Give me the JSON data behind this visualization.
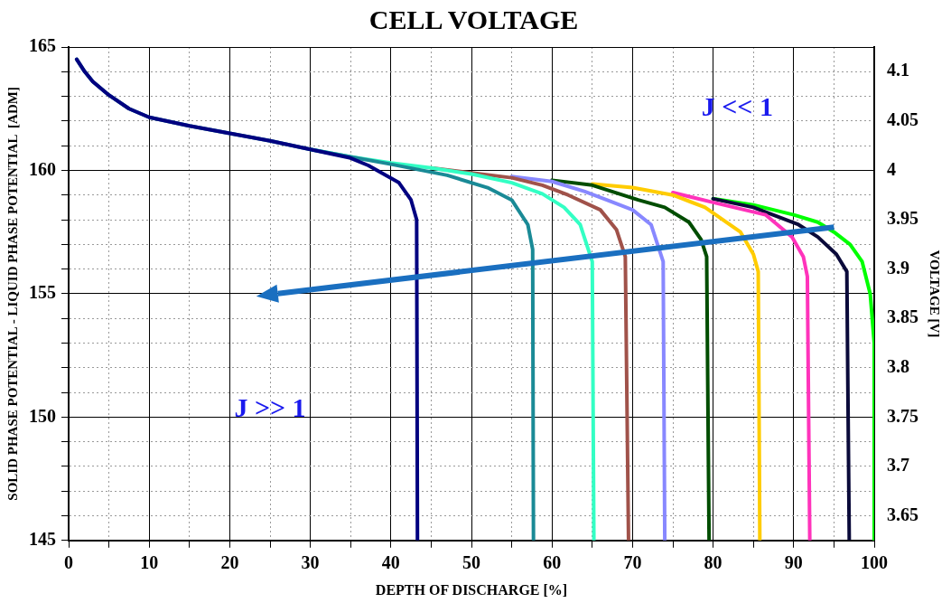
{
  "chart_data": {
    "type": "line",
    "title": "CELL VOLTAGE",
    "xlabel": "DEPTH OF DISCHARGE [%]",
    "ylabel": "SOLID PHASE POTENTIAL - LIQUID PHASE POTENTIAL  [ADM]",
    "y2label": "VOLTAGE [V]",
    "annotations": [
      "J << 1",
      "J >> 1"
    ],
    "xlim": [
      0,
      100
    ],
    "ylim": [
      145,
      165
    ],
    "y2lim": [
      3.625,
      4.125
    ],
    "xticks": [
      0,
      {
        "value": 5,
        "label": null
      },
      10,
      {
        "value": 15,
        "label": null
      },
      20,
      {
        "value": 25,
        "label": null
      },
      30,
      {
        "value": 35,
        "label": null
      },
      40,
      {
        "value": 45,
        "label": null
      },
      50,
      {
        "value": 55,
        "label": null
      },
      60,
      {
        "value": 65,
        "label": null
      },
      70,
      {
        "value": 75,
        "label": null
      },
      80,
      {
        "value": 85,
        "label": null
      },
      90,
      {
        "value": 95,
        "label": null
      },
      100
    ],
    "yticks": [
      145,
      {
        "value": 146,
        "label": null
      },
      {
        "value": 147,
        "label": null
      },
      {
        "value": 148,
        "label": null
      },
      {
        "value": 149,
        "label": null
      },
      150,
      {
        "value": 151,
        "label": null
      },
      {
        "value": 152,
        "label": null
      },
      {
        "value": 153,
        "label": null
      },
      {
        "value": 154,
        "label": null
      },
      155,
      {
        "value": 156,
        "label": null
      },
      {
        "value": 157,
        "label": null
      },
      {
        "value": 158,
        "label": null
      },
      {
        "value": 159,
        "label": null
      },
      160,
      {
        "value": 161,
        "label": null
      },
      {
        "value": 162,
        "label": null
      },
      {
        "value": 163,
        "label": null
      },
      {
        "value": 164,
        "label": null
      },
      165
    ],
    "y2ticks": [
      3.65,
      3.7,
      3.75,
      3.8,
      3.85,
      3.9,
      3.95,
      4,
      4.05,
      4.1
    ],
    "grid": true,
    "legend": false,
    "marker": "none",
    "line_style": "solid",
    "series": [
      {
        "color": "#000080",
        "x": [
          1,
          2,
          3,
          5,
          7.5,
          10,
          15,
          20,
          25,
          30,
          35,
          37.2,
          41,
          42.5,
          43.2,
          43.3
        ],
        "values": [
          164.5,
          164,
          163.6,
          163.05,
          162.5,
          162.15,
          161.8,
          161.5,
          161.2,
          160.85,
          160.5,
          160.2,
          159.5,
          158.8,
          158,
          145
        ]
      },
      {
        "color": "#1a8a96",
        "x": [
          1,
          2,
          3,
          5,
          7.5,
          10,
          15,
          20,
          25,
          30,
          35,
          40,
          47,
          52,
          55,
          57,
          57.6,
          57.7
        ],
        "values": [
          164.5,
          164,
          163.6,
          163.05,
          162.5,
          162.15,
          161.8,
          161.5,
          161.2,
          160.85,
          160.55,
          160.25,
          159.8,
          159.3,
          158.8,
          157.8,
          156.8,
          145
        ]
      },
      {
        "color": "#33ffc4",
        "x": [
          30,
          35,
          40,
          45,
          50,
          55,
          58.8,
          61.5,
          63.5,
          65,
          65.2
        ],
        "values": [
          160.85,
          160.55,
          160.3,
          160.1,
          159.85,
          159.5,
          159.05,
          158.5,
          157.8,
          156.3,
          145
        ]
      },
      {
        "color": "#a0524a",
        "x": [
          45,
          50,
          55,
          58.8,
          62,
          66,
          68,
          69.1,
          69.5
        ],
        "values": [
          160.1,
          159.9,
          159.7,
          159.4,
          159,
          158.4,
          157.6,
          156.5,
          145
        ]
      },
      {
        "color": "#8888ff",
        "x": [
          55,
          60,
          64,
          66.8,
          70,
          72.3,
          73.8,
          74
        ],
        "values": [
          159.75,
          159.55,
          159.15,
          158.8,
          158.4,
          157.8,
          156.3,
          145
        ]
      },
      {
        "color": "#004d00",
        "x": [
          60,
          65,
          70.7,
          74,
          77,
          78.5,
          79.2,
          79.5
        ],
        "values": [
          159.6,
          159.4,
          158.8,
          158.5,
          157.9,
          157.2,
          156.5,
          145
        ]
      },
      {
        "color": "#ffcc00",
        "x": [
          65,
          70,
          75,
          79,
          83.4,
          85,
          85.6,
          85.8
        ],
        "values": [
          159.45,
          159.3,
          159,
          158.5,
          157.5,
          156.6,
          155.9,
          145
        ]
      },
      {
        "color": "#ff33bb",
        "x": [
          75,
          80,
          86.5,
          89.8,
          91.2,
          91.7,
          92
        ],
        "values": [
          159.1,
          158.7,
          158.2,
          157.3,
          156.5,
          155.7,
          145
        ]
      },
      {
        "color": "#0a0a3a",
        "x": [
          80,
          85,
          90.6,
          93,
          95.3,
          96.6,
          96.9
        ],
        "values": [
          158.85,
          158.5,
          157.8,
          157.3,
          156.6,
          155.9,
          145
        ]
      },
      {
        "color": "#00ff00",
        "x": [
          80,
          85,
          90,
          93,
          95,
          97,
          98.5,
          99.5,
          100,
          100
        ],
        "values": [
          158.85,
          158.6,
          158.2,
          157.9,
          157.5,
          157,
          156.3,
          155,
          153,
          145
        ]
      }
    ]
  }
}
